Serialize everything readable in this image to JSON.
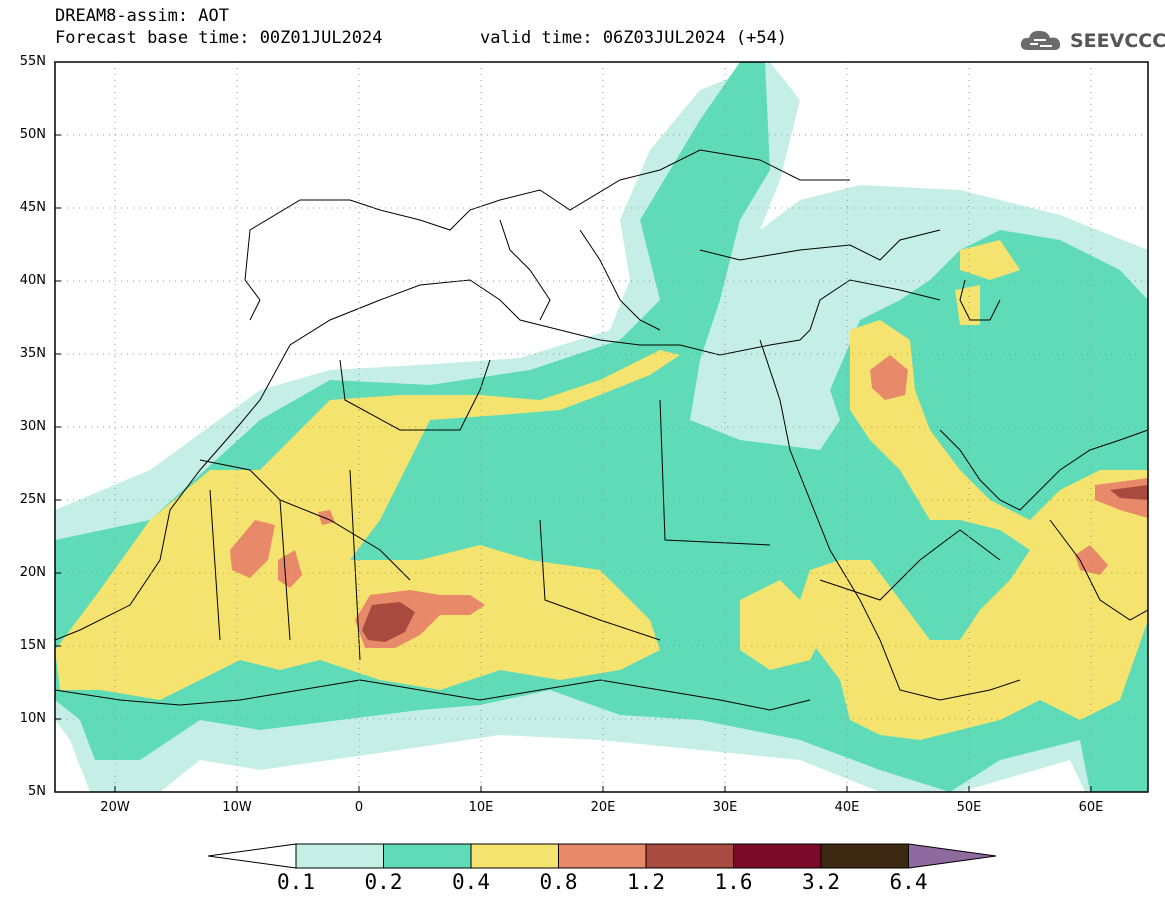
{
  "header": {
    "line1": "DREAM8-assim: AOT",
    "line2": "Forecast base time: 00Z01JUL2024",
    "valid": "valid time: 06Z03JUL2024 (+54)"
  },
  "logo": {
    "text": "SEEVCCC",
    "icon": "cloud-icon"
  },
  "map": {
    "lat_labels": [
      "55N",
      "50N",
      "45N",
      "40N",
      "35N",
      "30N",
      "25N",
      "20N",
      "15N",
      "10N",
      "5N"
    ],
    "lon_labels": [
      "20W",
      "10W",
      "0",
      "10E",
      "20E",
      "30E",
      "40E",
      "50E",
      "60E"
    ],
    "lat_range": [
      5,
      55
    ],
    "lon_range": [
      -25,
      65
    ],
    "grid": "dotted"
  },
  "colorbar": {
    "labels": [
      "0.1",
      "0.2",
      "0.4",
      "0.8",
      "1.2",
      "1.6",
      "3.2",
      "6.4"
    ],
    "colors": [
      "#ffffff",
      "#c5efe6",
      "#5fdbb7",
      "#f5e36f",
      "#e8896a",
      "#a94a3e",
      "#7b0a2a",
      "#3d2812",
      "#8e6aa0"
    ]
  }
}
